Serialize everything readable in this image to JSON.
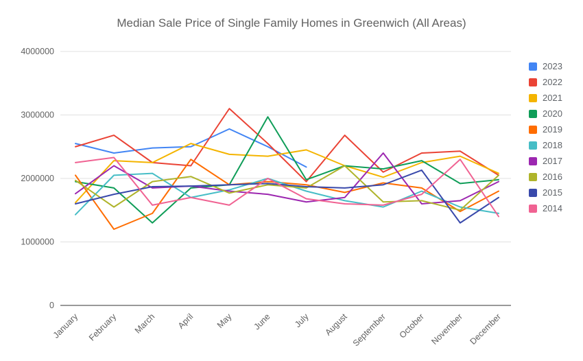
{
  "chart_data": {
    "type": "line",
    "title": "Median Sale Price of Single Family Homes in Greenwich (All Areas)",
    "categories": [
      "January",
      "February",
      "March",
      "April",
      "May",
      "June",
      "July",
      "August",
      "September",
      "October",
      "November",
      "December"
    ],
    "ylim": [
      0,
      4000000
    ],
    "yticks": [
      0,
      1000000,
      2000000,
      3000000,
      4000000
    ],
    "grid": true,
    "legend_position": "right",
    "axis_label_color": "#616161",
    "gridline_color": "#e0e0e0",
    "baseline_color": "#333333",
    "series": [
      {
        "name": "2023",
        "color": "#4285F4",
        "values": [
          2550000,
          2400000,
          2480000,
          2500000,
          2780000,
          2500000,
          2180000,
          null,
          null,
          null,
          null,
          null
        ]
      },
      {
        "name": "2022",
        "color": "#EA4335",
        "values": [
          2500000,
          2680000,
          2250000,
          2200000,
          3100000,
          2550000,
          1950000,
          2680000,
          2100000,
          2400000,
          2430000,
          2050000
        ]
      },
      {
        "name": "2021",
        "color": "#F4B400",
        "values": [
          1620000,
          2280000,
          2250000,
          2550000,
          2380000,
          2350000,
          2450000,
          2200000,
          2020000,
          2250000,
          2350000,
          2080000
        ]
      },
      {
        "name": "2020",
        "color": "#0F9D58",
        "values": [
          1950000,
          1850000,
          1300000,
          1850000,
          1900000,
          2970000,
          1980000,
          2200000,
          2150000,
          2280000,
          1920000,
          1980000
        ]
      },
      {
        "name": "2019",
        "color": "#FF6D01",
        "values": [
          2050000,
          1200000,
          1450000,
          2300000,
          1900000,
          1950000,
          1900000,
          1780000,
          1930000,
          1850000,
          1480000,
          1800000
        ]
      },
      {
        "name": "2018",
        "color": "#46BDC6",
        "values": [
          1430000,
          2050000,
          2080000,
          1700000,
          1820000,
          2000000,
          1800000,
          1650000,
          1550000,
          1800000,
          1550000,
          1450000
        ]
      },
      {
        "name": "2017",
        "color": "#9C27B0",
        "values": [
          1760000,
          2200000,
          1850000,
          1880000,
          1800000,
          1750000,
          1630000,
          1700000,
          2400000,
          1600000,
          1650000,
          1950000
        ]
      },
      {
        "name": "2016",
        "color": "#AFB42B",
        "values": [
          1970000,
          1550000,
          1950000,
          2030000,
          1770000,
          1900000,
          1850000,
          2200000,
          1630000,
          1650000,
          1500000,
          2050000
        ]
      },
      {
        "name": "2015",
        "color": "#3949AB",
        "values": [
          1600000,
          1750000,
          1870000,
          1880000,
          1900000,
          1920000,
          1870000,
          1850000,
          1900000,
          2130000,
          1300000,
          1700000
        ]
      },
      {
        "name": "2014",
        "color": "#F06292",
        "values": [
          2250000,
          2330000,
          1580000,
          1700000,
          1580000,
          2000000,
          1680000,
          1600000,
          1580000,
          1750000,
          2300000,
          1400000
        ]
      }
    ]
  }
}
